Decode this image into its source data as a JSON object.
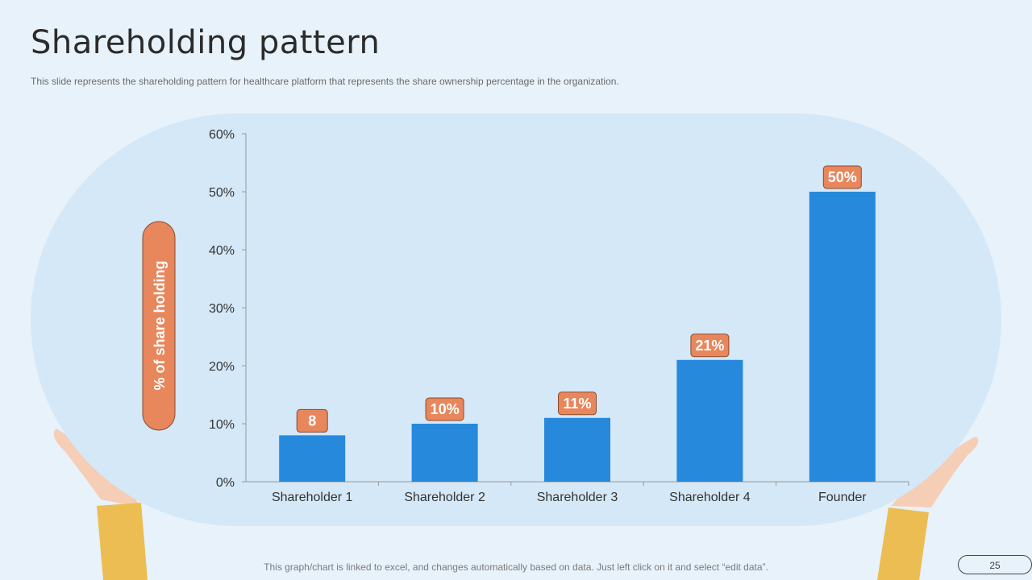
{
  "header": {
    "title": "Shareholding pattern",
    "subtitle": "This slide represents the shareholding pattern for healthcare platform that represents the share ownership percentage in the organization."
  },
  "footer": {
    "note": "This graph/chart is linked to excel, and changes automatically based on data. Just left click on it and select “edit data”.",
    "page_number": "25"
  },
  "colors": {
    "background": "#e7f2fb",
    "panel": "#d4e8f7",
    "bar": "#2689dc",
    "label_badge": "#e8865c",
    "skin": "#f6cdb5",
    "sleeve": "#ecbd52"
  },
  "chart_data": {
    "type": "bar",
    "title": "",
    "xlabel": "",
    "ylabel": "% of share holding",
    "categories": [
      "Shareholder 1",
      "Shareholder 2",
      "Shareholder 3",
      "Shareholder 4",
      "Founder"
    ],
    "values": [
      8,
      10,
      11,
      21,
      50
    ],
    "data_labels": [
      "8",
      "10%",
      "11%",
      "21%",
      "50%"
    ],
    "ylim": [
      0,
      60
    ],
    "yticks": [
      "0%",
      "10%",
      "20%",
      "30%",
      "40%",
      "50%",
      "60%"
    ],
    "ytick_values": [
      0,
      10,
      20,
      30,
      40,
      50,
      60
    ],
    "grid": false
  }
}
